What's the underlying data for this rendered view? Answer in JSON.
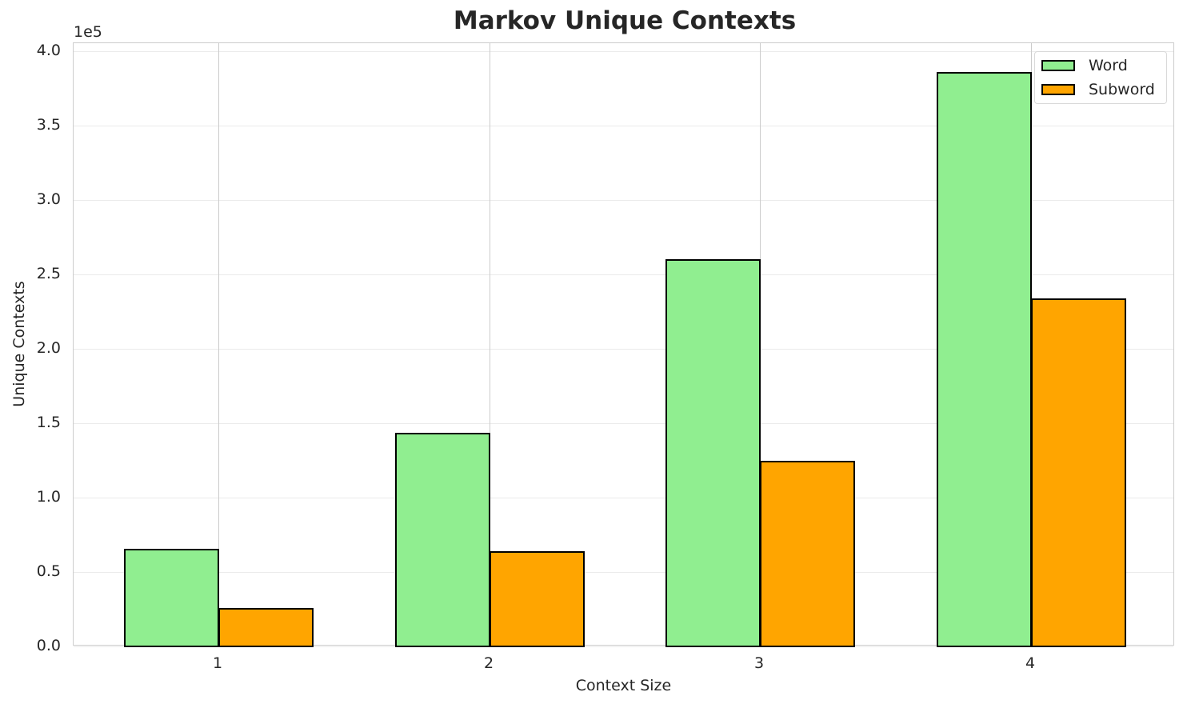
{
  "chart_data": {
    "type": "bar",
    "title": "Markov Unique Contexts",
    "xlabel": "Context Size",
    "ylabel": "Unique Contexts",
    "y_offset_label": "1e5",
    "categories": [
      "1",
      "2",
      "3",
      "4"
    ],
    "series": [
      {
        "name": "Word",
        "color": "#90ee90",
        "values": [
          65600,
          143500,
          260000,
          386000
        ]
      },
      {
        "name": "Subword",
        "color": "#ffa500",
        "values": [
          25800,
          64000,
          124700,
          234000
        ]
      }
    ],
    "ylim": [
      0,
      405000
    ],
    "yticks": [
      "0.0",
      "0.5",
      "1.0",
      "1.5",
      "2.0",
      "2.5",
      "3.0",
      "3.5",
      "4.0"
    ],
    "grid": true,
    "legend_position": "upper right"
  }
}
